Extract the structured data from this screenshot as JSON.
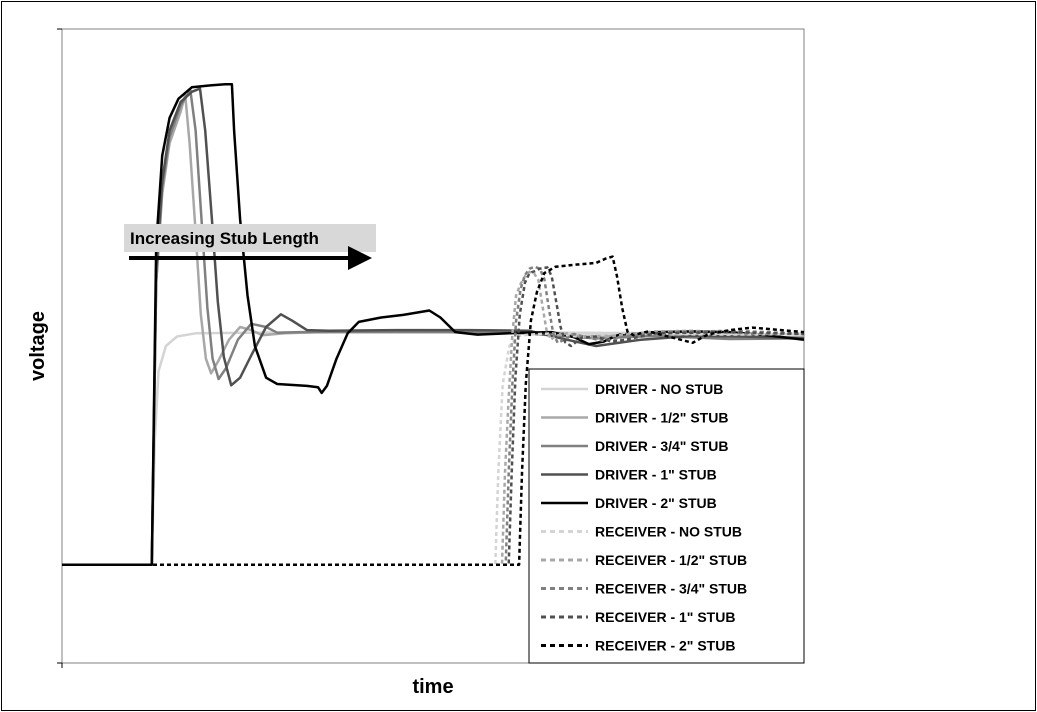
{
  "chart_data": {
    "type": "line",
    "title": "",
    "xlabel": "time",
    "ylabel": "voltage",
    "xlim": [
      0,
      100
    ],
    "ylim": [
      0,
      100
    ],
    "grid": false,
    "legend_position": "bottom-right",
    "annotation": {
      "text": "Increasing Stub Length",
      "arrow": "right"
    },
    "series": [
      {
        "name": "DRIVER - NO STUB",
        "color": "#d4d4d4",
        "dash": "solid",
        "points": [
          [
            0,
            15.5
          ],
          [
            12.1,
            15.5
          ],
          [
            12.5,
            35
          ],
          [
            13,
            46
          ],
          [
            14,
            50
          ],
          [
            15.5,
            51.5
          ],
          [
            18,
            52
          ],
          [
            25,
            52.1
          ],
          [
            40,
            52.2
          ],
          [
            55,
            52.2
          ],
          [
            70,
            52.1
          ],
          [
            80,
            52.0
          ],
          [
            95,
            51.9
          ],
          [
            100,
            51.8
          ]
        ]
      },
      {
        "name": "DRIVER - 1/2\" STUB",
        "color": "#a8a8a8",
        "dash": "solid",
        "points": [
          [
            0,
            15.5
          ],
          [
            12.1,
            15.5
          ],
          [
            12.7,
            60
          ],
          [
            13.5,
            74
          ],
          [
            14.5,
            82
          ],
          [
            16,
            87
          ],
          [
            16.6,
            89.6
          ],
          [
            17.2,
            82
          ],
          [
            18,
            68
          ],
          [
            18.7,
            55
          ],
          [
            19.4,
            48
          ],
          [
            20.1,
            45.7
          ],
          [
            21,
            47.5
          ],
          [
            22.5,
            51
          ],
          [
            24,
            53
          ],
          [
            25.5,
            52.5
          ],
          [
            27,
            51.7
          ],
          [
            30,
            52
          ],
          [
            38,
            52.3
          ],
          [
            50,
            52.2
          ],
          [
            62,
            52.1
          ],
          [
            70,
            51.6
          ],
          [
            80,
            51.7
          ],
          [
            90,
            51.3
          ],
          [
            100,
            51.4
          ]
        ]
      },
      {
        "name": "DRIVER - 3/4\" STUB",
        "color": "#808080",
        "dash": "solid",
        "points": [
          [
            0,
            15.5
          ],
          [
            12.1,
            15.5
          ],
          [
            12.7,
            60
          ],
          [
            13.5,
            75
          ],
          [
            14.5,
            83
          ],
          [
            16,
            88
          ],
          [
            17.3,
            90.3
          ],
          [
            18,
            84
          ],
          [
            18.8,
            70
          ],
          [
            19.6,
            56
          ],
          [
            20.3,
            48
          ],
          [
            21.1,
            44.8
          ],
          [
            22.1,
            46.5
          ],
          [
            23.7,
            51
          ],
          [
            25.5,
            53.5
          ],
          [
            27.5,
            53
          ],
          [
            29,
            52.1
          ],
          [
            32,
            52.2
          ],
          [
            40,
            52.2
          ],
          [
            52,
            52.2
          ],
          [
            62,
            52.0
          ],
          [
            72,
            51.2
          ],
          [
            80,
            51.6
          ],
          [
            90,
            51.1
          ],
          [
            100,
            51.2
          ]
        ]
      },
      {
        "name": "DRIVER - 1\" STUB",
        "color": "#505050",
        "dash": "solid",
        "points": [
          [
            0,
            15.5
          ],
          [
            12.1,
            15.5
          ],
          [
            12.7,
            62
          ],
          [
            13.5,
            76
          ],
          [
            14.5,
            84
          ],
          [
            16,
            88.5
          ],
          [
            17.5,
            90.1
          ],
          [
            18.6,
            90.6
          ],
          [
            19.3,
            84
          ],
          [
            20.2,
            70
          ],
          [
            21,
            57
          ],
          [
            21.8,
            48.3
          ],
          [
            22.8,
            43.8
          ],
          [
            24,
            45
          ],
          [
            25.5,
            48.5
          ],
          [
            27.5,
            53
          ],
          [
            29.5,
            55
          ],
          [
            31,
            54
          ],
          [
            33,
            52.5
          ],
          [
            36,
            52.4
          ],
          [
            45,
            52.5
          ],
          [
            55,
            52.5
          ],
          [
            63,
            52.4
          ],
          [
            68,
            51
          ],
          [
            72,
            50
          ],
          [
            78,
            51
          ],
          [
            85,
            51.6
          ],
          [
            92,
            51.5
          ],
          [
            100,
            51.2
          ]
        ]
      },
      {
        "name": "DRIVER - 2\" STUB",
        "color": "#000000",
        "dash": "solid",
        "points": [
          [
            0,
            15.5
          ],
          [
            12.1,
            15.5
          ],
          [
            12.7,
            66
          ],
          [
            13.5,
            80
          ],
          [
            14.5,
            86
          ],
          [
            15.7,
            89
          ],
          [
            17.5,
            90.8
          ],
          [
            20,
            91.1
          ],
          [
            22,
            91.3
          ],
          [
            22.9,
            91.3
          ],
          [
            23.2,
            84
          ],
          [
            24,
            70
          ],
          [
            25,
            58
          ],
          [
            26,
            50
          ],
          [
            27.5,
            45
          ],
          [
            29,
            44
          ],
          [
            33,
            43.7
          ],
          [
            34.5,
            43.5
          ],
          [
            35,
            42.6
          ],
          [
            35.7,
            43.7
          ],
          [
            37,
            48
          ],
          [
            38.5,
            52
          ],
          [
            40,
            53.8
          ],
          [
            43,
            54.5
          ],
          [
            46,
            54.9
          ],
          [
            48,
            55.3
          ],
          [
            49.5,
            55.6
          ],
          [
            51,
            54.5
          ],
          [
            53,
            52.2
          ],
          [
            56,
            51.8
          ],
          [
            62,
            52.1
          ],
          [
            66,
            52.2
          ],
          [
            69,
            51.4
          ],
          [
            71,
            50.3
          ],
          [
            73,
            50.7
          ],
          [
            75,
            51.8
          ],
          [
            80,
            52.2
          ],
          [
            85,
            52.3
          ],
          [
            90,
            52.2
          ],
          [
            95,
            51.7
          ],
          [
            100,
            51
          ]
        ]
      },
      {
        "name": "RECEIVER - NO STUB",
        "color": "#d4d4d4",
        "dash": "dashed",
        "points": [
          [
            0,
            15.5
          ],
          [
            58.4,
            15.5
          ],
          [
            58.8,
            30
          ],
          [
            59.4,
            44
          ],
          [
            60.3,
            50
          ],
          [
            61.5,
            51.6
          ],
          [
            63,
            51.8
          ],
          [
            66,
            52
          ],
          [
            70,
            51.4
          ],
          [
            75,
            52.1
          ],
          [
            80,
            51.9
          ],
          [
            90,
            51.8
          ],
          [
            100,
            51.9
          ]
        ]
      },
      {
        "name": "RECEIVER - 1/2\" STUB",
        "color": "#a8a8a8",
        "dash": "dashed",
        "points": [
          [
            0,
            15.5
          ],
          [
            59.3,
            15.5
          ],
          [
            59.7,
            30
          ],
          [
            60.2,
            42
          ],
          [
            60.7,
            52
          ],
          [
            61.2,
            58
          ],
          [
            61.8,
            59.8
          ],
          [
            62.4,
            61
          ],
          [
            63,
            61.7
          ],
          [
            63.6,
            61.5
          ],
          [
            64.2,
            60.4
          ],
          [
            64.8,
            56
          ],
          [
            65.3,
            52.5
          ],
          [
            65.9,
            51
          ],
          [
            66.5,
            51.6
          ],
          [
            68,
            52
          ],
          [
            70,
            51.6
          ],
          [
            72,
            51.1
          ],
          [
            75,
            51.7
          ],
          [
            80,
            52.3
          ],
          [
            85,
            52.4
          ],
          [
            90,
            52.1
          ],
          [
            95,
            51.9
          ],
          [
            100,
            51.9
          ]
        ]
      },
      {
        "name": "RECEIVER - 3/4\" STUB",
        "color": "#808080",
        "dash": "dashed",
        "points": [
          [
            0,
            15.5
          ],
          [
            59.8,
            15.5
          ],
          [
            60.2,
            30
          ],
          [
            60.7,
            44
          ],
          [
            61.2,
            54
          ],
          [
            61.8,
            59
          ],
          [
            62.4,
            61.2
          ],
          [
            63,
            62.2
          ],
          [
            63.7,
            62.5
          ],
          [
            64.4,
            62.2
          ],
          [
            65,
            60.6
          ],
          [
            65.6,
            56
          ],
          [
            66.2,
            52
          ],
          [
            66.8,
            50.5
          ],
          [
            67.7,
            51
          ],
          [
            69,
            51.9
          ],
          [
            71,
            51.3
          ],
          [
            73,
            50.8
          ],
          [
            76,
            51.5
          ],
          [
            82,
            52.2
          ],
          [
            90,
            52.4
          ],
          [
            95,
            52.2
          ],
          [
            100,
            51.9
          ]
        ]
      },
      {
        "name": "RECEIVER - 1\" STUB",
        "color": "#505050",
        "dash": "dashed",
        "points": [
          [
            0,
            15.5
          ],
          [
            60.2,
            15.5
          ],
          [
            60.6,
            30
          ],
          [
            61.1,
            45
          ],
          [
            61.7,
            55
          ],
          [
            62.4,
            60
          ],
          [
            63,
            61.5
          ],
          [
            63.7,
            61.8
          ],
          [
            64.4,
            62.2
          ],
          [
            65.4,
            62.4
          ],
          [
            66,
            61
          ],
          [
            66.6,
            57
          ],
          [
            67.2,
            53
          ],
          [
            67.8,
            50.6
          ],
          [
            68.6,
            50
          ],
          [
            70,
            51.3
          ],
          [
            72,
            51.5
          ],
          [
            74,
            50.7
          ],
          [
            76,
            51
          ],
          [
            80,
            52
          ],
          [
            90,
            52.2
          ],
          [
            100,
            51.9
          ]
        ]
      },
      {
        "name": "RECEIVER - 2\" STUB",
        "color": "#000000",
        "dash": "dashed",
        "points": [
          [
            0,
            15.5
          ],
          [
            61.6,
            15.5
          ],
          [
            62,
            30
          ],
          [
            62.5,
            44
          ],
          [
            63.2,
            54
          ],
          [
            64,
            58.5
          ],
          [
            65,
            61.5
          ],
          [
            66.5,
            62.5
          ],
          [
            69,
            62.8
          ],
          [
            72,
            63.1
          ],
          [
            73.3,
            63.8
          ],
          [
            74.2,
            64.1
          ],
          [
            74.8,
            61
          ],
          [
            75.5,
            56
          ],
          [
            76.2,
            52.3
          ],
          [
            77,
            51.7
          ],
          [
            79,
            52.3
          ],
          [
            83,
            51.1
          ],
          [
            85,
            50.5
          ],
          [
            87,
            51.8
          ],
          [
            90,
            52.5
          ],
          [
            93,
            52.9
          ],
          [
            96,
            52.6
          ],
          [
            100,
            52.2
          ]
        ]
      }
    ]
  }
}
